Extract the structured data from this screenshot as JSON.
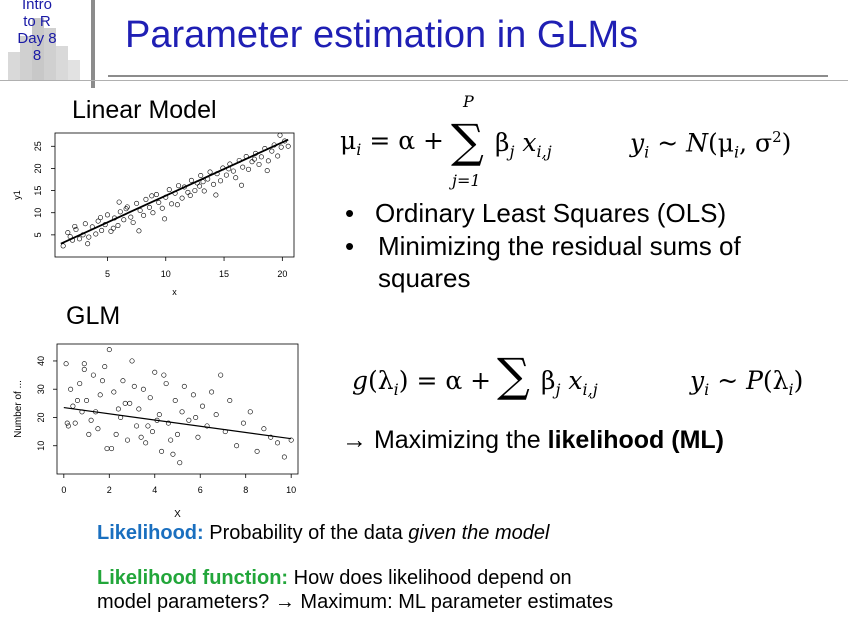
{
  "header": {
    "logo_lines": [
      "Intro",
      "to R",
      "Day 8",
      "8"
    ],
    "title": "Parameter estimation in GLMs"
  },
  "linear_model": {
    "heading": "Linear Model",
    "formula_mean": "μ_i = α + Σ_{j=1}^{P} β_j x_{i,j}",
    "formula_dist": "y_i ~ N(μ_i, σ²)",
    "bullets": [
      "Ordinary Least Squares (OLS)",
      "Minimizing the residual sums of squares"
    ]
  },
  "glm": {
    "heading": "GLM",
    "formula_link": "g(λ_i) = α + Σ β_j x_{i,j}",
    "formula_dist": "y_i ~ P(λ_i)",
    "arrow_prefix": "→ Maximizing the ",
    "arrow_bold": "likelihood (ML)"
  },
  "definitions": {
    "likelihood_term": "Likelihood:",
    "likelihood_text_1": " Probability of the data ",
    "likelihood_text_italic": "given the model",
    "function_term": "Likelihood function:",
    "function_line_1": " How does likelihood depend on",
    "function_line_2": "model parameters? → Maximum: ML parameter estimates"
  },
  "chart_data": [
    {
      "type": "scatter",
      "title": "",
      "xlabel": "x",
      "ylabel": "y1",
      "xlim": [
        0.5,
        21
      ],
      "ylim": [
        0,
        28
      ],
      "xticks": [
        "5",
        "10",
        "15",
        "20"
      ],
      "yticks": [
        "5",
        "10",
        "15",
        "20",
        "25"
      ],
      "trend_line": {
        "x": [
          1,
          20.5
        ],
        "y": [
          3,
          26.5
        ]
      },
      "series": [
        {
          "x": [
            1.2,
            1.6,
            2.0,
            2.3,
            2.6,
            2.9,
            3.1,
            3.4,
            3.7,
            4.0,
            4.2,
            4.5,
            4.8,
            5.0,
            5.3,
            5.6,
            5.9,
            6.1,
            6.4,
            6.7,
            7.0,
            7.2,
            7.5,
            7.8,
            8.1,
            8.3,
            8.6,
            8.9,
            9.2,
            9.4,
            9.7,
            10.0,
            10.3,
            10.5,
            10.8,
            11.1,
            11.4,
            11.6,
            11.9,
            12.2,
            12.5,
            12.7,
            13.0,
            13.3,
            13.6,
            13.8,
            14.1,
            14.4,
            14.7,
            14.9,
            15.2,
            15.5,
            15.8,
            16.0,
            16.3,
            16.6,
            16.9,
            17.1,
            17.4,
            17.7,
            18.0,
            18.2,
            18.5,
            18.8,
            19.1,
            19.3,
            19.6,
            19.9,
            20.2,
            20.5,
            2.2,
            3.3,
            4.4,
            5.5,
            6.6,
            7.7,
            8.8,
            9.9,
            11.0,
            12.1,
            13.2,
            14.3,
            15.4,
            16.5,
            17.6,
            18.7,
            19.8,
            1.8,
            6.0,
            12.9
          ],
          "y": [
            2.5,
            5.5,
            3.8,
            6.2,
            4.1,
            5.0,
            7.5,
            4.5,
            6.8,
            5.2,
            8.1,
            6.0,
            7.3,
            9.5,
            5.8,
            8.8,
            7.1,
            10.2,
            8.4,
            11.3,
            9.0,
            7.8,
            12.1,
            10.5,
            9.4,
            13.0,
            11.2,
            10.0,
            14.1,
            12.3,
            11.0,
            13.5,
            15.2,
            12.0,
            14.4,
            16.1,
            13.3,
            15.8,
            14.6,
            17.3,
            15.0,
            16.7,
            18.4,
            14.9,
            17.6,
            19.2,
            16.4,
            18.8,
            17.2,
            20.1,
            18.5,
            21.0,
            19.4,
            17.9,
            21.8,
            20.3,
            22.7,
            19.8,
            21.5,
            23.4,
            20.9,
            22.6,
            24.5,
            21.7,
            23.9,
            25.3,
            22.8,
            24.8,
            26.2,
            25.0,
            6.9,
            3.0,
            8.9,
            6.5,
            10.9,
            5.9,
            13.8,
            8.6,
            11.8,
            13.9,
            17.0,
            14.0,
            19.9,
            16.2,
            22.1,
            19.5,
            27.5,
            4.6,
            12.4,
            16.0
          ]
        }
      ]
    },
    {
      "type": "scatter",
      "title": "",
      "xlabel": "X",
      "ylabel": "Number of ...",
      "xlim": [
        -0.3,
        10.3
      ],
      "ylim": [
        0,
        46
      ],
      "xticks": [
        "0",
        "2",
        "4",
        "6",
        "8",
        "10"
      ],
      "yticks": [
        "10",
        "20",
        "30",
        "40"
      ],
      "trend_line": {
        "x": [
          0,
          10
        ],
        "y": [
          23.5,
          12.5
        ]
      },
      "series": [
        {
          "x": [
            0.1,
            0.2,
            0.3,
            0.4,
            0.5,
            0.7,
            0.8,
            0.9,
            1.0,
            1.2,
            1.3,
            1.5,
            1.6,
            1.8,
            1.9,
            2.0,
            2.2,
            2.3,
            2.5,
            2.6,
            2.8,
            2.9,
            3.0,
            3.2,
            3.3,
            3.5,
            3.6,
            3.8,
            3.9,
            4.0,
            4.2,
            4.3,
            4.5,
            4.6,
            4.8,
            4.9,
            5.0,
            5.2,
            5.3,
            5.5,
            5.7,
            5.9,
            6.1,
            6.3,
            6.5,
            6.7,
            6.9,
            7.1,
            7.3,
            7.6,
            7.9,
            8.2,
            8.5,
            8.8,
            9.1,
            9.4,
            9.7,
            10.0,
            0.6,
            1.1,
            1.7,
            2.4,
            3.1,
            3.7,
            4.4,
            5.1,
            5.8,
            0.15,
            0.9,
            1.4,
            2.1,
            2.7,
            3.4,
            4.1,
            4.7
          ],
          "y": [
            39,
            17,
            30,
            24,
            18,
            32,
            22,
            39,
            26,
            19,
            35,
            16,
            28,
            38,
            9,
            44,
            29,
            14,
            20,
            33,
            12,
            25,
            40,
            17,
            23,
            30,
            11,
            27,
            15,
            36,
            21,
            8,
            32,
            18,
            7,
            26,
            14,
            22,
            31,
            19,
            28,
            13,
            24,
            17,
            29,
            21,
            35,
            15,
            26,
            10,
            18,
            22,
            8,
            16,
            13,
            11,
            6,
            12,
            26,
            14,
            33,
            23,
            31,
            17,
            35,
            4,
            20,
            18,
            37,
            22,
            9,
            25,
            13,
            19,
            12
          ]
        }
      ]
    }
  ]
}
